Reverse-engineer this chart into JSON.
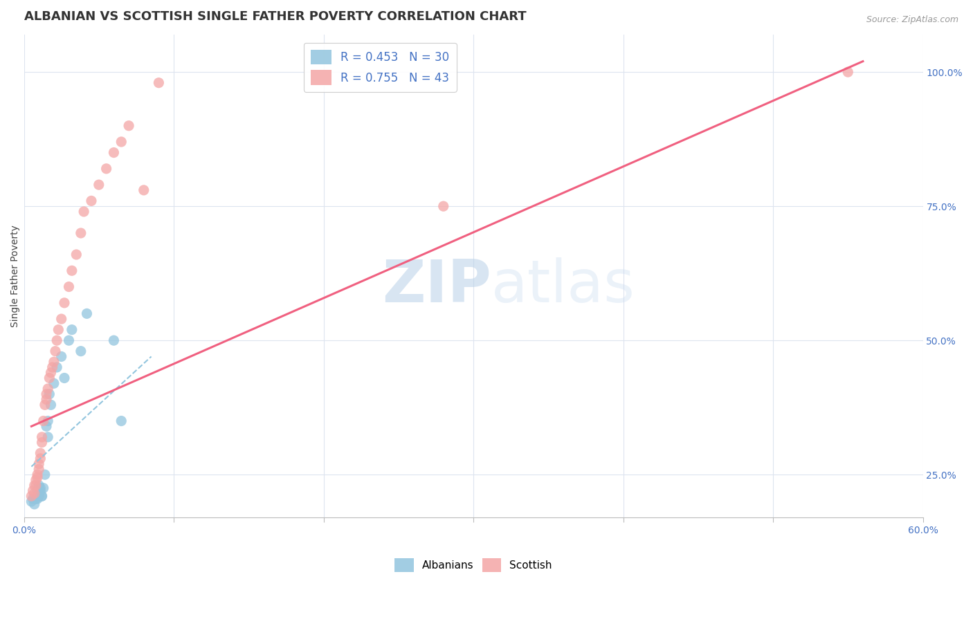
{
  "title": "ALBANIAN VS SCOTTISH SINGLE FATHER POVERTY CORRELATION CHART",
  "source_text": "Source: ZipAtlas.com",
  "ylabel": "Single Father Poverty",
  "xlim": [
    0.0,
    0.6
  ],
  "ylim": [
    0.17,
    1.07
  ],
  "xticks": [
    0.0,
    0.1,
    0.2,
    0.3,
    0.4,
    0.5,
    0.6
  ],
  "xticklabels": [
    "0.0%",
    "",
    "",
    "",
    "",
    "",
    "60.0%"
  ],
  "yticks_right": [
    0.25,
    0.5,
    0.75,
    1.0
  ],
  "ytick_right_labels": [
    "25.0%",
    "50.0%",
    "75.0%",
    "100.0%"
  ],
  "albanian_color": "#92c5de",
  "scottish_color": "#f4a6a6",
  "legend_albanian_label": "R = 0.453   N = 30",
  "legend_scottish_label": "R = 0.755   N = 43",
  "legend_bottom_albanian": "Albanians",
  "legend_bottom_scottish": "Scottish",
  "watermark_zip": "ZIP",
  "watermark_atlas": "atlas",
  "title_fontsize": 13,
  "axis_label_fontsize": 10,
  "tick_fontsize": 10,
  "background_color": "#ffffff",
  "grid_color": "#dde4ef",
  "albanian_trend_color": "#92c5de",
  "scottish_trend_color": "#f06080",
  "alb_trend_x": [
    0.005,
    0.085
  ],
  "alb_trend_y": [
    0.265,
    0.47
  ],
  "sco_trend_x": [
    0.005,
    0.56
  ],
  "sco_trend_y": [
    0.34,
    1.02
  ],
  "albanian_x": [
    0.005,
    0.006,
    0.007,
    0.008,
    0.009,
    0.009,
    0.01,
    0.01,
    0.01,
    0.011,
    0.011,
    0.012,
    0.012,
    0.013,
    0.014,
    0.015,
    0.016,
    0.016,
    0.017,
    0.018,
    0.02,
    0.022,
    0.025,
    0.027,
    0.03,
    0.032,
    0.038,
    0.042,
    0.06,
    0.065
  ],
  "albanian_y": [
    0.2,
    0.205,
    0.195,
    0.205,
    0.205,
    0.22,
    0.215,
    0.21,
    0.23,
    0.22,
    0.225,
    0.21,
    0.21,
    0.225,
    0.25,
    0.34,
    0.35,
    0.32,
    0.4,
    0.38,
    0.42,
    0.45,
    0.47,
    0.43,
    0.5,
    0.52,
    0.48,
    0.55,
    0.5,
    0.35
  ],
  "scottish_x": [
    0.005,
    0.006,
    0.007,
    0.007,
    0.008,
    0.008,
    0.009,
    0.009,
    0.01,
    0.01,
    0.011,
    0.011,
    0.012,
    0.012,
    0.013,
    0.014,
    0.015,
    0.015,
    0.016,
    0.017,
    0.018,
    0.019,
    0.02,
    0.021,
    0.022,
    0.023,
    0.025,
    0.027,
    0.03,
    0.032,
    0.035,
    0.038,
    0.04,
    0.045,
    0.05,
    0.055,
    0.06,
    0.065,
    0.07,
    0.08,
    0.09,
    0.28,
    0.55
  ],
  "scottish_y": [
    0.21,
    0.22,
    0.215,
    0.23,
    0.23,
    0.24,
    0.245,
    0.25,
    0.26,
    0.27,
    0.28,
    0.29,
    0.31,
    0.32,
    0.35,
    0.38,
    0.39,
    0.4,
    0.41,
    0.43,
    0.44,
    0.45,
    0.46,
    0.48,
    0.5,
    0.52,
    0.54,
    0.57,
    0.6,
    0.63,
    0.66,
    0.7,
    0.74,
    0.76,
    0.79,
    0.82,
    0.85,
    0.87,
    0.9,
    0.78,
    0.98,
    0.75,
    1.0
  ]
}
